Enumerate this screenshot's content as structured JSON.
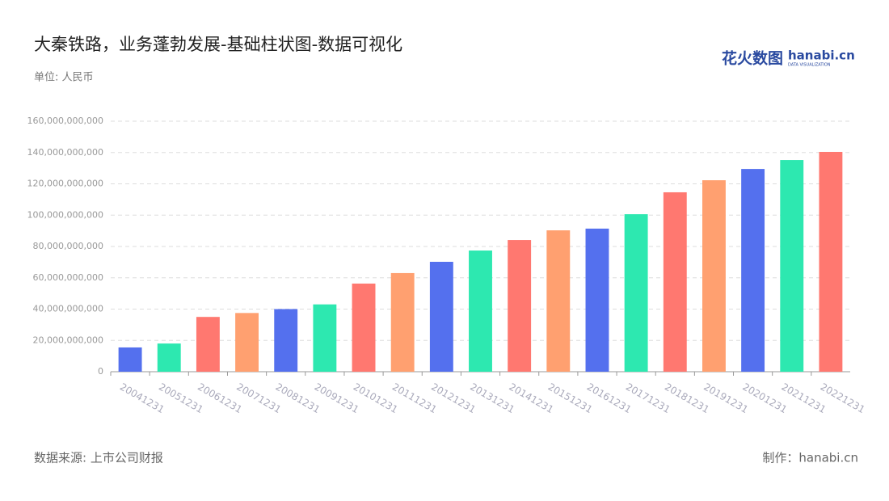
{
  "chart_data": {
    "type": "bar",
    "title": "大秦铁路，业务蓬勃发展-基础柱状图-数据可视化",
    "subtitle": "单位: 人民币",
    "source": "数据来源: 上市公司财报",
    "credit": "制作：hanabi.cn",
    "logo": {
      "cn": "花火数图",
      "en": "hanabi.cn",
      "tagline": "DATA VISUALIZATION"
    },
    "categories": [
      "20041231",
      "20051231",
      "20061231",
      "20071231",
      "20081231",
      "20091231",
      "20101231",
      "20111231",
      "20121231",
      "20131231",
      "20141231",
      "20151231",
      "20161231",
      "20171231",
      "20181231",
      "20191231",
      "20201231",
      "20211231",
      "20221231"
    ],
    "values": [
      15500000000,
      18000000000,
      35000000000,
      37500000000,
      40000000000,
      43000000000,
      56300000000,
      63000000000,
      70200000000,
      77400000000,
      84100000000,
      90300000000,
      91400000000,
      100600000000,
      114600000000,
      122300000000,
      129500000000,
      135200000000,
      140400000000
    ],
    "colors": [
      "#5470ee",
      "#2de8b0",
      "#ff7870",
      "#ffa070",
      "#5470ee",
      "#2de8b0",
      "#ff7870",
      "#ffa070",
      "#5470ee",
      "#2de8b0",
      "#ff7870",
      "#ffa070",
      "#5470ee",
      "#2de8b0",
      "#ff7870",
      "#ffa070",
      "#5470ee",
      "#2de8b0",
      "#ff7870"
    ],
    "ylim": [
      0,
      160000000000
    ],
    "yticks": [
      0,
      {
        "value": 20000000000,
        "label": "20,000,000,000"
      },
      {
        "value": 40000000000,
        "label": "40,000,000,000"
      },
      {
        "value": 60000000000,
        "label": "60,000,000,000"
      },
      {
        "value": 80000000000,
        "label": "80,000,000,000"
      },
      {
        "value": 100000000000,
        "label": "100,000,000,000"
      },
      {
        "value": 120000000000,
        "label": "120,000,000,000"
      },
      {
        "value": 140000000000,
        "label": "140,000,000,000"
      },
      {
        "value": 160000000000,
        "label": "160,000,000,000"
      }
    ],
    "grid": true
  }
}
